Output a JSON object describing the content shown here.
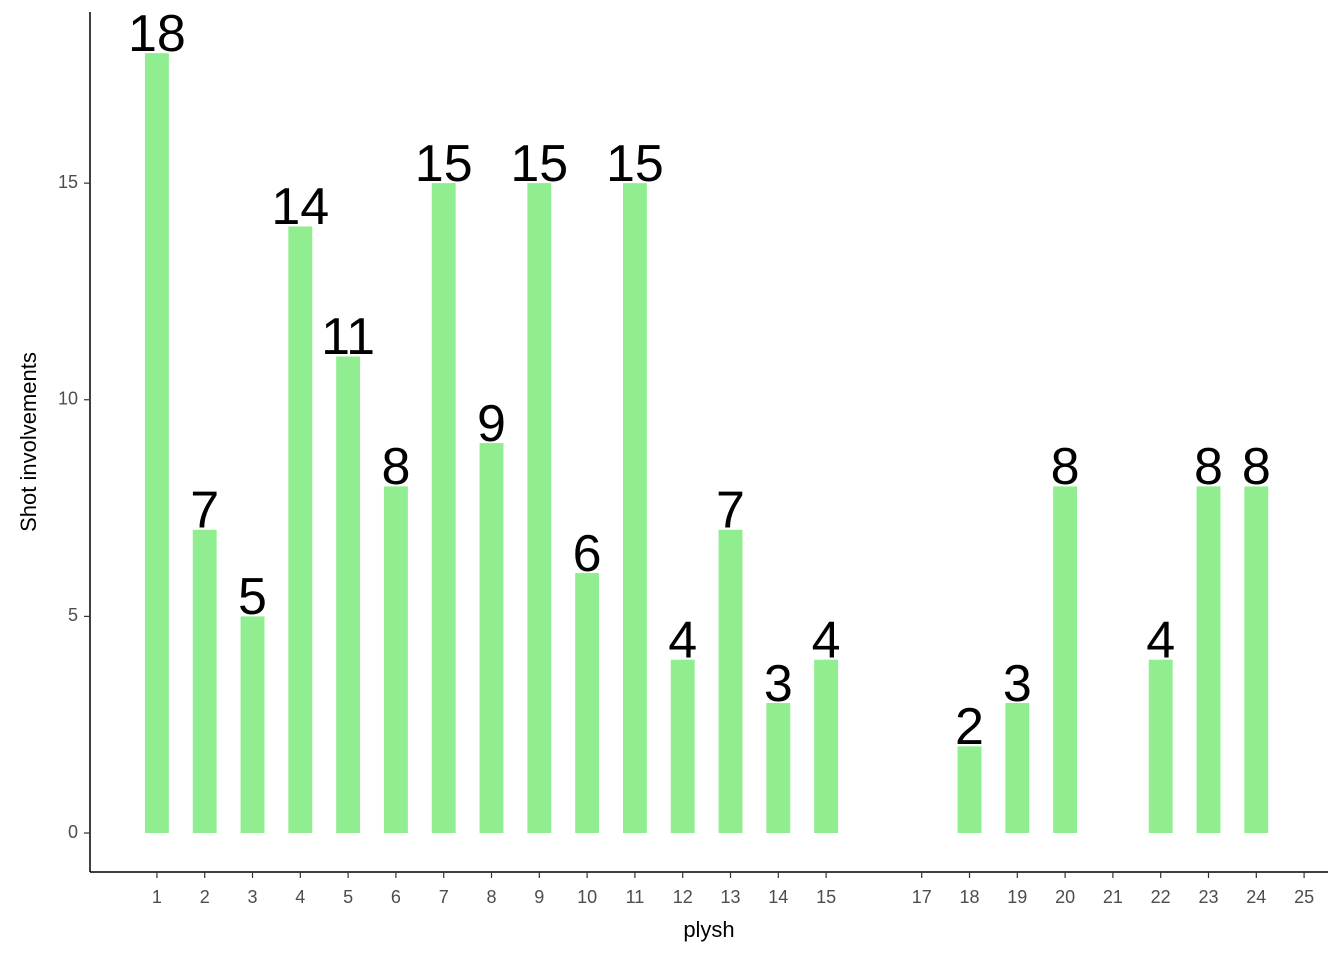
{
  "chart_data": {
    "type": "bar",
    "x": [
      1,
      2,
      3,
      4,
      5,
      6,
      7,
      8,
      9,
      10,
      11,
      12,
      13,
      14,
      15,
      18,
      19,
      20,
      22,
      23,
      24
    ],
    "values": [
      18,
      7,
      5,
      14,
      11,
      8,
      15,
      9,
      15,
      6,
      15,
      4,
      7,
      3,
      4,
      2,
      3,
      8,
      4,
      8,
      8
    ],
    "color": "#90ee90",
    "xlabel": "plysh",
    "ylabel": "Shot involvements",
    "xlim": [
      -0.4,
      25.5
    ],
    "ylim": [
      -0.9,
      18.95
    ],
    "xticks": [
      1,
      2,
      3,
      4,
      5,
      6,
      7,
      8,
      9,
      10,
      11,
      12,
      13,
      14,
      15,
      17,
      18,
      19,
      20,
      21,
      22,
      23,
      24,
      25
    ],
    "yticks": [
      0,
      5,
      10,
      15
    ],
    "grid": false
  }
}
